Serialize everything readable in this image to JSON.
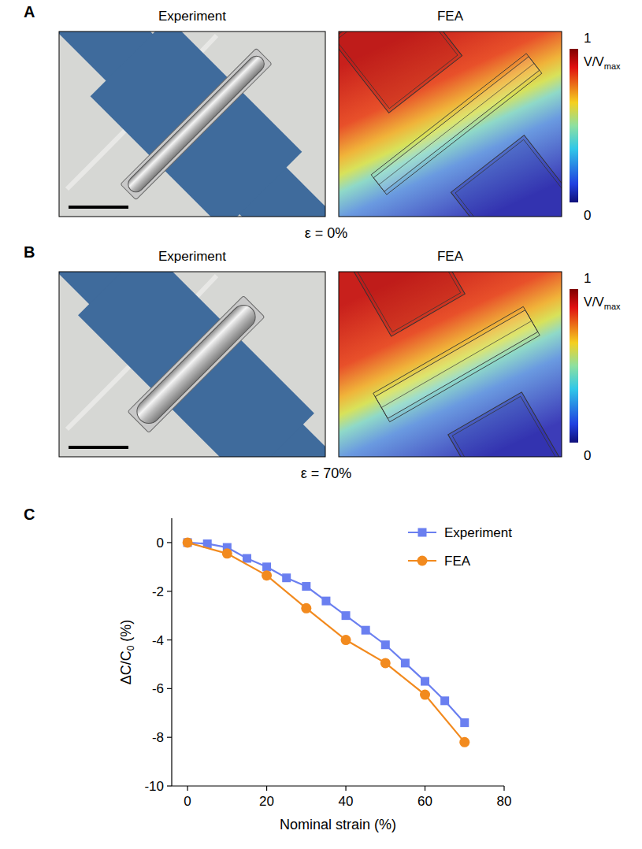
{
  "panels": [
    {
      "letter": "A",
      "left_title": "Experiment",
      "right_title": "FEA",
      "caption": "ε = 0%",
      "colorbar_label": "V/V",
      "colorbar_label_sub": "max",
      "colorbar_ticks": [
        0,
        1
      ]
    },
    {
      "letter": "B",
      "left_title": "Experiment",
      "right_title": "FEA",
      "caption": "ε = 70%",
      "colorbar_label": "V/V",
      "colorbar_label_sub": "max",
      "colorbar_ticks": [
        0,
        1
      ]
    }
  ],
  "chart_data": {
    "letter": "C",
    "type": "line",
    "xlabel": "Nominal strain (%)",
    "ylabel": "ΔC/C",
    "ylabel_sub": "0",
    "ylabel_unit": " (%)",
    "xlim": [
      -4,
      80
    ],
    "xticks": [
      0,
      20,
      40,
      60,
      80
    ],
    "ylim": [
      -10,
      1
    ],
    "yticks": [
      -10,
      -8,
      -6,
      -4,
      -2,
      0
    ],
    "grid": false,
    "legend": "top-right",
    "series": [
      {
        "name": "Experiment",
        "color": "#6a7ff0",
        "marker": "square",
        "x": [
          0,
          5,
          10,
          15,
          20,
          25,
          30,
          35,
          40,
          45,
          50,
          55,
          60,
          65,
          70
        ],
        "values": [
          0,
          -0.05,
          -0.2,
          -0.65,
          -1.0,
          -1.45,
          -1.8,
          -2.4,
          -3.0,
          -3.6,
          -4.2,
          -4.95,
          -5.7,
          -6.5,
          -7.4
        ]
      },
      {
        "name": "FEA",
        "color": "#f28a1e",
        "marker": "circle",
        "x": [
          0,
          10,
          20,
          30,
          40,
          50,
          60,
          70
        ],
        "values": [
          0,
          -0.45,
          -1.35,
          -2.7,
          -4.0,
          -4.95,
          -6.25,
          -8.2
        ]
      }
    ]
  }
}
